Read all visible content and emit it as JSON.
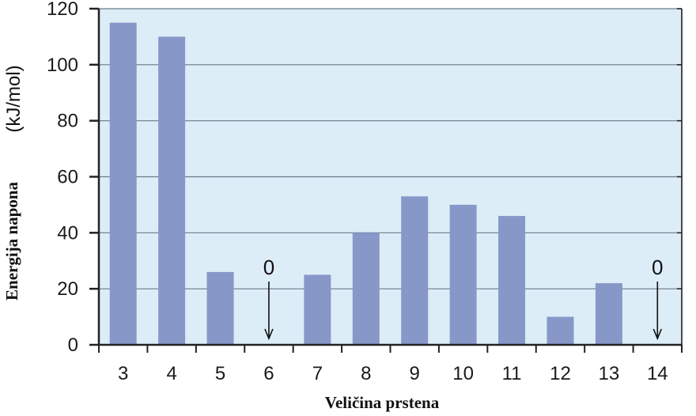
{
  "chart_data": {
    "type": "bar",
    "categories": [
      "3",
      "4",
      "5",
      "6",
      "7",
      "8",
      "9",
      "10",
      "11",
      "12",
      "13",
      "14"
    ],
    "values": [
      115,
      110,
      26,
      0,
      25,
      40,
      53,
      50,
      46,
      10,
      22,
      0
    ],
    "xlabel": "Veličina prstena",
    "ylabel": "Energija napona",
    "ylabel_unit": "(kJ/mol)",
    "ylim": [
      0,
      120
    ],
    "yticks": [
      0,
      20,
      40,
      60,
      80,
      100,
      120
    ],
    "zero_annotations": [
      {
        "category": "6",
        "label": "0"
      },
      {
        "category": "14",
        "label": "0"
      }
    ],
    "grid": true,
    "colors": {
      "bar": "#8797c8",
      "plot_background": "#dcedf8",
      "grid": "#6b7a86",
      "axis": "#222222"
    }
  }
}
